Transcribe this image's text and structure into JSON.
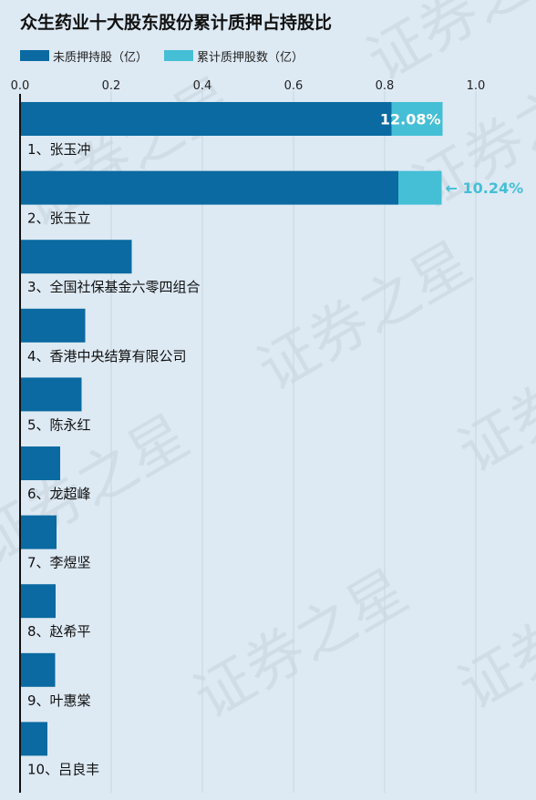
{
  "title": "众生药业十大股东股份累计质押占持股比",
  "legend": [
    {
      "label": "未质押持股（亿）",
      "color": "#0a6aa1"
    },
    {
      "label": "累计质押股数（亿）",
      "color": "#44bfd5"
    }
  ],
  "watermark": "证券之星",
  "chart_data": {
    "type": "bar",
    "orientation": "horizontal",
    "stacked": true,
    "xlim": [
      0,
      1.0
    ],
    "xticks": [
      "0.0",
      "0.2",
      "0.4",
      "0.6",
      "0.8",
      "1.0"
    ],
    "xtick_values": [
      0,
      0.2,
      0.4,
      0.6,
      0.8,
      1.0
    ],
    "grid": true,
    "legend_position": "top-left",
    "categories": [
      "1、张玉冲",
      "2、张玉立",
      "3、全国社保基金六零四组合",
      "4、香港中央结算有限公司",
      "5、陈永红",
      "6、龙超峰",
      "7、李煜坚",
      "8、赵希平",
      "9、叶惠棠",
      "10、吕良丰"
    ],
    "series": [
      {
        "name": "未质押持股（亿）",
        "color": "#0a6aa1",
        "values": [
          0.815,
          0.83,
          0.245,
          0.143,
          0.135,
          0.088,
          0.08,
          0.078,
          0.077,
          0.06
        ]
      },
      {
        "name": "累计质押股数（亿）",
        "color": "#44bfd5",
        "values": [
          0.112,
          0.095,
          0,
          0,
          0,
          0,
          0,
          0,
          0,
          0
        ]
      }
    ],
    "annotations": [
      {
        "category_index": 0,
        "text": "12.08%",
        "placement": "inside"
      },
      {
        "category_index": 1,
        "text": "← 10.24%",
        "placement": "outside"
      }
    ]
  }
}
